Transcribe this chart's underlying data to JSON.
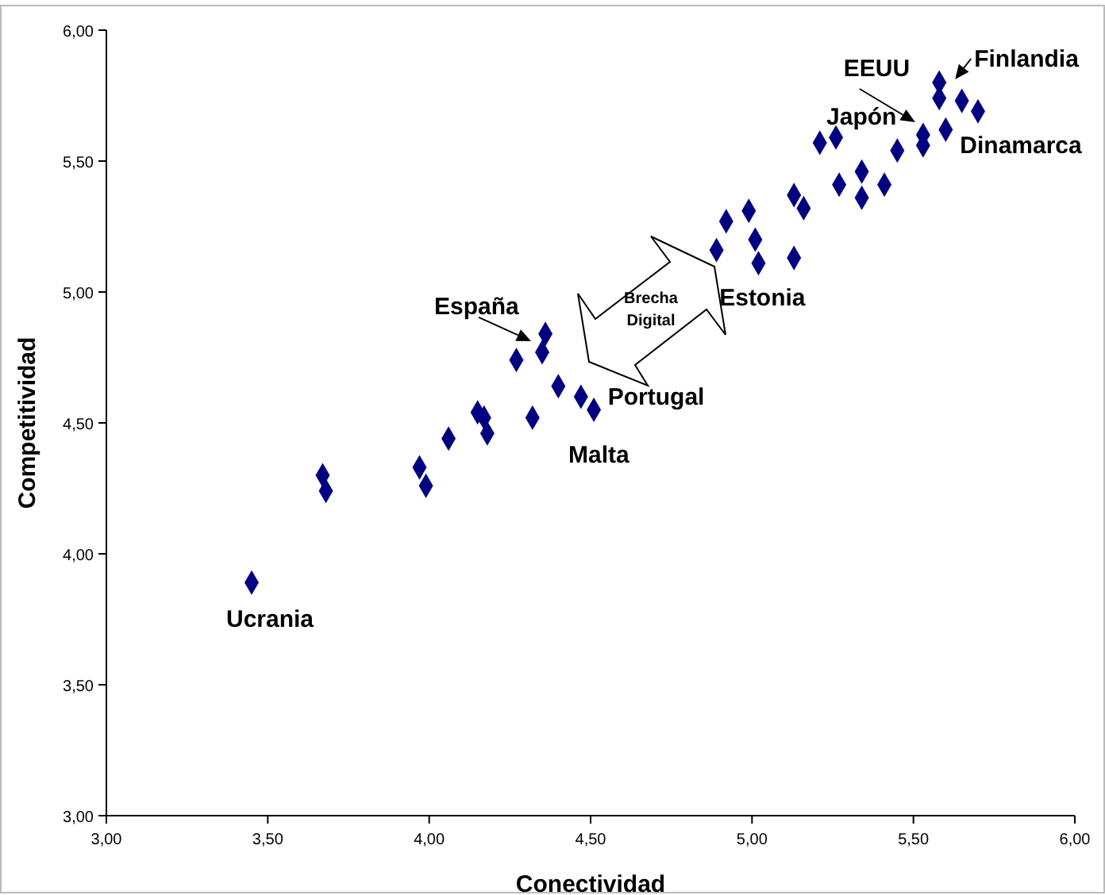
{
  "chart_data": {
    "type": "scatter",
    "xlabel": "Conectividad",
    "ylabel": "Competitividad",
    "marker": "diamond",
    "grid": false,
    "xlim": [
      3,
      6
    ],
    "ylim": [
      3,
      6
    ],
    "xticks": [
      {
        "value": 3,
        "label": "3,00"
      },
      {
        "value": 3.5,
        "label": "3,50"
      },
      {
        "value": 4,
        "label": "4,00"
      },
      {
        "value": 4.5,
        "label": "4,50"
      },
      {
        "value": 5,
        "label": "5,00"
      },
      {
        "value": 5.5,
        "label": "5,50"
      },
      {
        "value": 6,
        "label": "6,00"
      }
    ],
    "yticks": [
      {
        "value": 3,
        "label": "3,00"
      },
      {
        "value": 3.5,
        "label": "3,50"
      },
      {
        "value": 4,
        "label": "4,00"
      },
      {
        "value": 4.5,
        "label": "4,50"
      },
      {
        "value": 5,
        "label": "5,00"
      },
      {
        "value": 5.5,
        "label": "5,50"
      },
      {
        "value": 6,
        "label": "6,00"
      }
    ],
    "series": [
      {
        "color": "#000080",
        "x": [
          3.45,
          3.67,
          3.68,
          3.97,
          3.99,
          4.06,
          4.15,
          4.17,
          4.18,
          4.27,
          4.32,
          4.35,
          4.36,
          4.4,
          4.47,
          4.51,
          4.89,
          4.92,
          4.99,
          5.01,
          5.02,
          5.13,
          5.13,
          5.16,
          5.21,
          5.26,
          5.27,
          5.34,
          5.34,
          5.41,
          5.45,
          5.53,
          5.53,
          5.58,
          5.58,
          5.6,
          5.65,
          5.7
        ],
        "values": [
          3.89,
          4.3,
          4.24,
          4.33,
          4.26,
          4.44,
          4.54,
          4.52,
          4.46,
          4.74,
          4.52,
          4.77,
          4.84,
          4.64,
          4.6,
          4.55,
          5.16,
          5.27,
          5.31,
          5.2,
          5.11,
          5.13,
          5.37,
          5.32,
          5.57,
          5.59,
          5.41,
          5.46,
          5.36,
          5.41,
          5.54,
          5.6,
          5.56,
          5.8,
          5.74,
          5.62,
          5.73,
          5.69
        ]
      }
    ],
    "annotations": [
      {
        "text": "Finlandia",
        "x": 5.58,
        "y": 5.8
      },
      {
        "text": "EEUU",
        "x": 5.53,
        "y": 5.6
      },
      {
        "text": "Japón",
        "x": 5.26,
        "y": 5.59
      },
      {
        "text": "Dinamarca",
        "x": 5.6,
        "y": 5.62
      },
      {
        "text": "Estonia",
        "x": 5.13,
        "y": 5.13
      },
      {
        "text": "España",
        "x": 4.35,
        "y": 4.77
      },
      {
        "text": "Portugal",
        "x": 4.47,
        "y": 4.6
      },
      {
        "text": "Malta",
        "x": 4.51,
        "y": 4.55
      },
      {
        "text": "Ucrania",
        "x": 3.45,
        "y": 3.89
      },
      "Brecha Digital"
    ]
  }
}
